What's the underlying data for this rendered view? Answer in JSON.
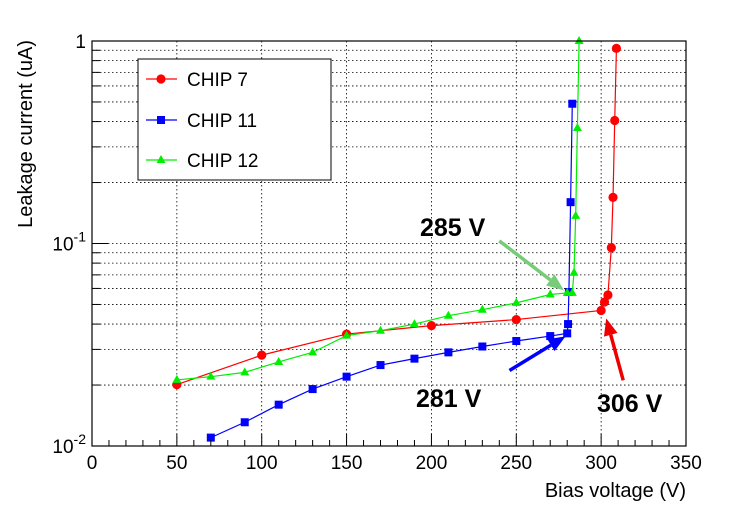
{
  "chart_data": {
    "type": "line",
    "xlabel": "Bias voltage (V)",
    "ylabel": "Leakage current (uA)",
    "xlim": [
      0,
      350
    ],
    "ylim": [
      0.01,
      1
    ],
    "y_scale": "log",
    "grid": true,
    "legend_position": "top-left",
    "x_ticks": [
      0,
      50,
      100,
      150,
      200,
      250,
      300,
      350
    ],
    "x_tick_labels": [
      "0",
      "50",
      "100",
      "150",
      "200",
      "250",
      "300",
      "350"
    ],
    "y_ticks": [
      {
        "value": 0.01,
        "base": "10",
        "exp": "-2"
      },
      {
        "value": 0.1,
        "base": "10",
        "exp": "-1"
      },
      {
        "value": 1,
        "base": "1",
        "exp": ""
      }
    ],
    "series": [
      {
        "name": "CHIP 7",
        "color": "#ff0000",
        "marker": "circle",
        "points": [
          [
            50,
            0.0201
          ],
          [
            100,
            0.0281
          ],
          [
            150,
            0.0357
          ],
          [
            200,
            0.0393
          ],
          [
            250,
            0.0421
          ],
          [
            300,
            0.0467
          ],
          [
            302,
            0.0514
          ],
          [
            304,
            0.0557
          ],
          [
            306,
            0.0953
          ],
          [
            307,
            0.169
          ],
          [
            308,
            0.405
          ],
          [
            309,
            0.92
          ]
        ]
      },
      {
        "name": "CHIP 11",
        "color": "#0000ff",
        "marker": "square",
        "points": [
          [
            70,
            0.011
          ],
          [
            90,
            0.0131
          ],
          [
            110,
            0.016
          ],
          [
            130,
            0.0191
          ],
          [
            150,
            0.022
          ],
          [
            170,
            0.0251
          ],
          [
            190,
            0.027
          ],
          [
            210,
            0.029
          ],
          [
            230,
            0.031
          ],
          [
            250,
            0.033
          ],
          [
            270,
            0.0349
          ],
          [
            280,
            0.036
          ],
          [
            280.5,
            0.04
          ],
          [
            281,
            0.0576
          ],
          [
            282,
            0.16
          ],
          [
            283,
            0.49
          ]
        ]
      },
      {
        "name": "CHIP 12",
        "color": "#00ee00",
        "marker": "triangle",
        "points": [
          [
            50,
            0.0212
          ],
          [
            70,
            0.022
          ],
          [
            90,
            0.0231
          ],
          [
            110,
            0.026
          ],
          [
            130,
            0.029
          ],
          [
            150,
            0.0351
          ],
          [
            170,
            0.0371
          ],
          [
            190,
            0.04
          ],
          [
            210,
            0.044
          ],
          [
            230,
            0.0471
          ],
          [
            250,
            0.0509
          ],
          [
            270,
            0.056
          ],
          [
            280,
            0.057
          ],
          [
            283,
            0.057
          ],
          [
            284,
            0.0717
          ],
          [
            285,
            0.137
          ],
          [
            286,
            0.372
          ],
          [
            287,
            1.0
          ]
        ]
      }
    ],
    "annotations": [
      {
        "text": "285 V",
        "color": "#77cc77",
        "arrow_from": [
          240,
          0.103
        ],
        "arrow_to": [
          278,
          0.0588
        ]
      },
      {
        "text": "281 V",
        "color": "#0000ff",
        "arrow_from": [
          246,
          0.0236
        ],
        "arrow_to": [
          279,
          0.0348
        ]
      },
      {
        "text": "306 V",
        "color": "#ee0000",
        "arrow_from": [
          313,
          0.0211
        ],
        "arrow_to": [
          303,
          0.0427
        ]
      }
    ]
  }
}
